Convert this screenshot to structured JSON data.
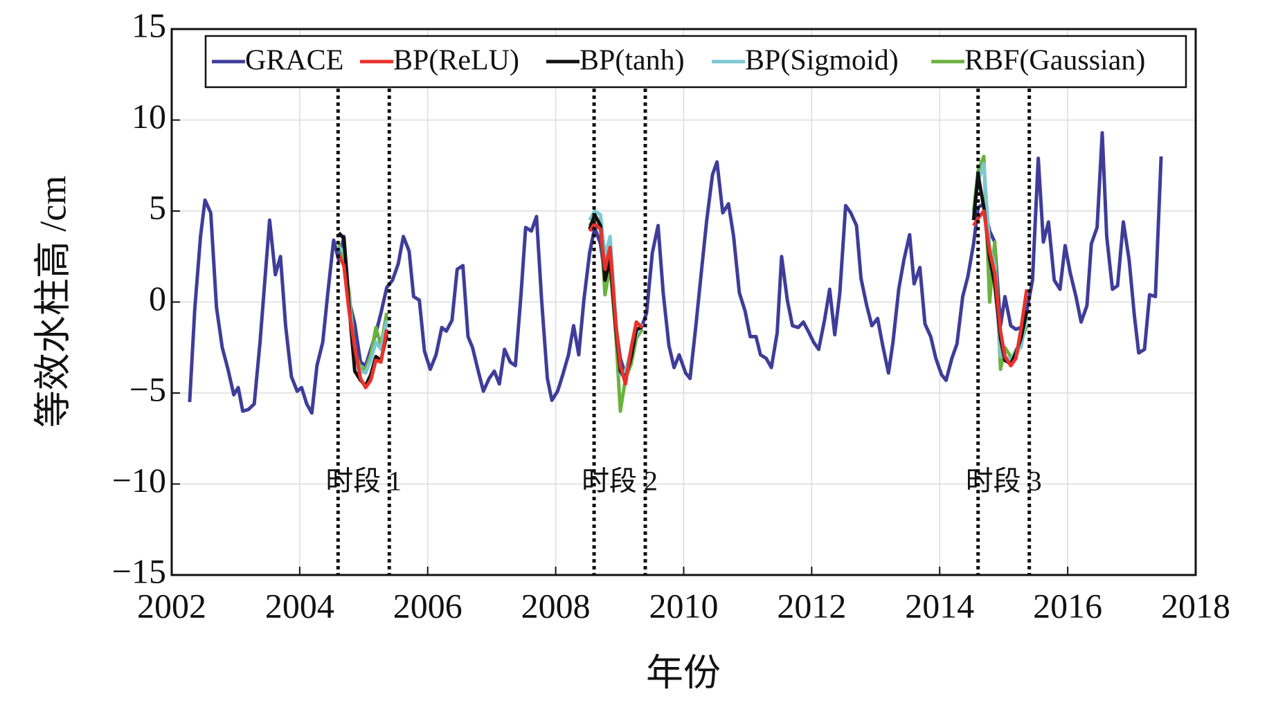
{
  "chart_data": {
    "type": "line",
    "x_label": "年份",
    "y_label": "等效水柱高 /cm",
    "xlim": [
      2002,
      2018
    ],
    "xticks": [
      2002,
      2004,
      2006,
      2008,
      2010,
      2012,
      2014,
      2016,
      2018
    ],
    "ylim": [
      -15,
      15
    ],
    "yticks": [
      {
        "value": -15,
        "label": "−15"
      },
      {
        "value": -10,
        "label": "−10"
      },
      {
        "value": -5,
        "label": "−5"
      },
      0,
      5,
      10,
      15
    ],
    "grid": true,
    "legend": "top",
    "periods": [
      {
        "label": "时段 1",
        "start": 2004.6,
        "end": 2005.4
      },
      {
        "label": "时段 2",
        "start": 2008.6,
        "end": 2009.4
      },
      {
        "label": "时段 3",
        "start": 2014.6,
        "end": 2015.4
      }
    ],
    "series": [
      {
        "name": "GRACE",
        "color": "#3f3d99",
        "x": [
          2002.28,
          2002.36,
          2002.45,
          2002.52,
          2002.61,
          2002.7,
          2002.79,
          2002.88,
          2002.97,
          2003.04,
          2003.11,
          2003.2,
          2003.29,
          2003.38,
          2003.46,
          2003.53,
          2003.62,
          2003.7,
          2003.78,
          2003.87,
          2003.96,
          2004.03,
          2004.11,
          2004.19,
          2004.27,
          2004.36,
          2004.44,
          2004.53,
          2004.61,
          2004.69,
          2004.77,
          2004.86,
          2004.95,
          2005.03,
          2005.11,
          2005.19,
          2005.27,
          2005.36,
          2005.45,
          2005.54,
          2005.62,
          2005.71,
          2005.78,
          2005.87,
          2005.95,
          2006.04,
          2006.13,
          2006.22,
          2006.29,
          2006.38,
          2006.46,
          2006.55,
          2006.63,
          2006.7,
          2006.79,
          2006.87,
          2006.96,
          2007.04,
          2007.12,
          2007.2,
          2007.29,
          2007.37,
          2007.46,
          2007.53,
          2007.62,
          2007.7,
          2007.78,
          2007.87,
          2007.94,
          2008.03,
          2008.11,
          2008.2,
          2008.28,
          2008.36,
          2008.44,
          2008.53,
          2008.61,
          2008.7,
          2008.77,
          2008.85,
          2008.94,
          2009.01,
          2009.09,
          2009.18,
          2009.26,
          2009.35,
          2009.42,
          2009.51,
          2009.6,
          2009.68,
          2009.77,
          2009.85,
          2009.93,
          2010.03,
          2010.1,
          2010.19,
          2010.28,
          2010.36,
          2010.45,
          2010.52,
          2010.61,
          2010.7,
          2010.78,
          2010.87,
          2010.96,
          2011.04,
          2011.13,
          2011.2,
          2011.29,
          2011.37,
          2011.46,
          2011.53,
          2011.62,
          2011.7,
          2011.79,
          2011.87,
          2011.96,
          2012.03,
          2012.11,
          2012.2,
          2012.28,
          2012.36,
          2012.44,
          2012.53,
          2012.61,
          2012.7,
          2012.77,
          2012.86,
          2012.94,
          2013.03,
          2013.11,
          2013.2,
          2013.27,
          2013.36,
          2013.44,
          2013.53,
          2013.6,
          2013.69,
          2013.77,
          2013.86,
          2013.94,
          2014.03,
          2014.1,
          2014.19,
          2014.27,
          2014.36,
          2014.44,
          2014.53,
          2014.6,
          2014.69,
          2014.78,
          2014.86,
          2014.95,
          2015.02,
          2015.11,
          2015.19,
          2015.27,
          2015.36,
          2015.45,
          2015.54,
          2015.62,
          2015.7,
          2015.79,
          2015.88,
          2015.96,
          2016.04,
          2016.13,
          2016.21,
          2016.3,
          2016.37,
          2016.46,
          2016.54,
          2016.61,
          2016.7,
          2016.78,
          2016.87,
          2016.96,
          2017.04,
          2017.11,
          2017.2,
          2017.28,
          2017.37,
          2017.46
        ],
        "values": [
          -5.5,
          -0.4,
          3.6,
          5.6,
          4.9,
          -0.3,
          -2.5,
          -3.7,
          -5.1,
          -4.7,
          -6.0,
          -5.9,
          -5.6,
          -2.2,
          1.4,
          4.5,
          1.5,
          2.5,
          -1.3,
          -4.1,
          -4.9,
          -4.7,
          -5.6,
          -6.1,
          -3.5,
          -2.2,
          0.5,
          3.4,
          2.3,
          3.6,
          0.1,
          -1.2,
          -3.3,
          -3.5,
          -2.6,
          -1.7,
          -0.6,
          0.8,
          1.2,
          2.1,
          3.6,
          2.8,
          0.3,
          0.1,
          -2.7,
          -3.7,
          -2.9,
          -1.4,
          -1.6,
          -1.0,
          1.8,
          2.0,
          -1.9,
          -2.5,
          -3.8,
          -4.9,
          -4.2,
          -3.8,
          -4.5,
          -2.6,
          -3.3,
          -3.5,
          0.5,
          4.1,
          3.9,
          4.7,
          0.1,
          -4.2,
          -5.4,
          -4.9,
          -4.0,
          -2.9,
          -1.3,
          -2.9,
          0.1,
          2.7,
          4.1,
          3.2,
          1.4,
          2.1,
          -1.3,
          -3.1,
          -4.0,
          -3.1,
          -1.9,
          -1.3,
          -0.6,
          2.7,
          4.2,
          0.5,
          -2.4,
          -3.6,
          -2.9,
          -3.9,
          -4.2,
          -1.3,
          1.8,
          4.5,
          7.0,
          7.7,
          4.9,
          5.4,
          3.6,
          0.5,
          -0.5,
          -1.9,
          -1.9,
          -2.9,
          -3.1,
          -3.6,
          -1.7,
          2.5,
          0.1,
          -1.3,
          -1.4,
          -1.1,
          -1.7,
          -2.2,
          -2.6,
          -1.0,
          0.7,
          -1.8,
          0.5,
          5.3,
          4.9,
          4.2,
          1.3,
          -0.2,
          -1.3,
          -0.9,
          -2.4,
          -3.9,
          -2.2,
          0.7,
          2.3,
          3.7,
          1.0,
          1.9,
          -1.2,
          -1.9,
          -3.1,
          -4.0,
          -4.3,
          -3.1,
          -2.3,
          0.3,
          1.4,
          3.2,
          5.2,
          5.4,
          3.9,
          3.3,
          -1.3,
          0.3,
          -1.3,
          -1.5,
          -1.4,
          -0.5,
          1.2,
          7.9,
          3.3,
          4.4,
          1.2,
          0.7,
          3.1,
          1.6,
          0.3,
          -1.1,
          -0.2,
          3.2,
          4.1,
          9.3,
          3.6,
          0.7,
          0.9,
          4.4,
          2.3,
          -0.7,
          -2.8,
          -2.6,
          0.4,
          0.3,
          8.0
        ]
      },
      {
        "name": "BP(ReLU)",
        "color": "#e8322b",
        "x": [
          2004.61,
          2004.69,
          2004.77,
          2004.86,
          2004.95,
          2005.03,
          2005.11,
          2005.19,
          2005.27,
          2005.36,
          null,
          2008.53,
          2008.61,
          2008.7,
          2008.77,
          2008.85,
          2008.94,
          2009.01,
          2009.09,
          2009.18,
          2009.26,
          2009.35,
          null,
          2014.53,
          2014.6,
          2014.69,
          2014.78,
          2014.86,
          2014.95,
          2015.02,
          2015.11,
          2015.19,
          2015.27,
          2015.36
        ],
        "values": [
          2.6,
          2.0,
          -0.5,
          -2.5,
          -4.2,
          -4.7,
          -4.3,
          -3.2,
          -3.3,
          -1.5,
          null,
          3.9,
          4.3,
          4.0,
          1.8,
          3.0,
          -1.2,
          -3.5,
          -4.5,
          -2.5,
          -1.1,
          -1.4,
          null,
          4.2,
          4.6,
          5.0,
          2.8,
          1.6,
          -1.6,
          -3.0,
          -3.5,
          -3.1,
          -1.5,
          0.7
        ]
      },
      {
        "name": "BP(tanh)",
        "color": "#111111",
        "x": [
          2004.61,
          2004.69,
          2004.77,
          2004.86,
          2004.95,
          2005.03,
          2005.11,
          2005.19,
          2005.27,
          2005.36,
          null,
          2008.53,
          2008.61,
          2008.7,
          2008.77,
          2008.85,
          2008.94,
          2009.01,
          2009.09,
          2009.18,
          2009.26,
          2009.35,
          null,
          2014.53,
          2014.6,
          2014.69,
          2014.78,
          2014.86,
          2014.95,
          2015.02,
          2015.11,
          2015.19,
          2015.27,
          2015.36
        ],
        "values": [
          3.8,
          3.5,
          -0.2,
          -3.8,
          -4.3,
          -4.6,
          -4.0,
          -3.0,
          -3.2,
          -1.8,
          null,
          4.0,
          4.8,
          4.2,
          1.2,
          2.3,
          -1.5,
          -3.8,
          -4.2,
          -3.0,
          -1.5,
          -1.4,
          null,
          4.5,
          7.0,
          5.2,
          2.4,
          1.0,
          -2.0,
          -3.2,
          -3.4,
          -2.8,
          -2.0,
          -0.5
        ]
      },
      {
        "name": "BP(Sigmoid)",
        "color": "#7cc8d0",
        "x": [
          2004.61,
          2004.69,
          2004.77,
          2004.86,
          2004.95,
          2005.03,
          2005.11,
          2005.19,
          2005.27,
          2005.36,
          null,
          2008.53,
          2008.61,
          2008.7,
          2008.77,
          2008.85,
          2008.94,
          2009.01,
          2009.09,
          2009.18,
          2009.26,
          2009.35,
          null,
          2014.53,
          2014.6,
          2014.69,
          2014.78,
          2014.86,
          2014.95,
          2015.02,
          2015.11,
          2015.19,
          2015.27,
          2015.36
        ],
        "values": [
          3.0,
          2.8,
          0.2,
          -3.0,
          -3.8,
          -3.9,
          -3.2,
          -2.2,
          -2.6,
          -1.0,
          null,
          4.5,
          5.0,
          4.8,
          2.5,
          3.6,
          -1.0,
          -4.0,
          -3.8,
          -2.6,
          -1.8,
          -1.2,
          null,
          4.8,
          6.6,
          7.6,
          3.0,
          2.0,
          -3.0,
          -3.0,
          -3.2,
          -2.6,
          -2.5,
          -0.8
        ]
      },
      {
        "name": "RBF(Gaussian)",
        "color": "#6ab23e",
        "x": [
          2004.61,
          2004.69,
          2004.77,
          2004.86,
          2004.95,
          2005.03,
          2005.11,
          2005.19,
          2005.27,
          2005.36,
          null,
          2008.53,
          2008.61,
          2008.7,
          2008.77,
          2008.85,
          2008.94,
          2009.01,
          2009.09,
          2009.18,
          2009.26,
          2009.35,
          null,
          2014.53,
          2014.6,
          2014.69,
          2014.78,
          2014.86,
          2014.95,
          2015.02,
          2015.11,
          2015.19,
          2015.27,
          2015.36
        ],
        "values": [
          3.2,
          2.4,
          0.6,
          -2.8,
          -3.6,
          -3.7,
          -2.9,
          -1.4,
          -2.4,
          -0.6,
          null,
          4.2,
          4.6,
          4.4,
          0.4,
          2.0,
          -1.8,
          -6.0,
          -4.2,
          -3.4,
          -2.0,
          -1.5,
          null,
          5.0,
          7.2,
          8.0,
          0.0,
          3.3,
          -3.7,
          -2.5,
          -3.0,
          -3.0,
          -2.2,
          -1.3
        ]
      }
    ]
  }
}
